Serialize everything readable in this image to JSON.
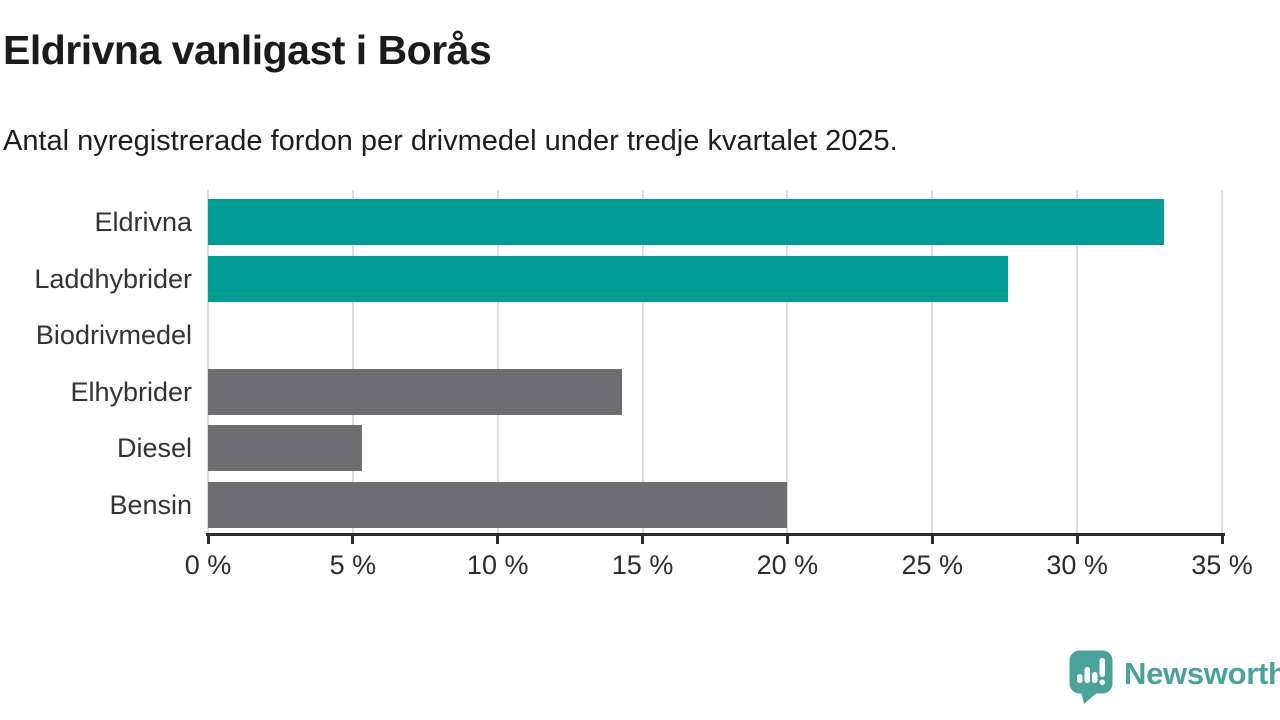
{
  "title": "Eldrivna vanligast i Borås",
  "subtitle": "Antal nyregistrerade fordon per drivmedel under tredje kvartalet 2025.",
  "chart_data": {
    "type": "bar",
    "orientation": "horizontal",
    "title": "Eldrivna vanligast i Borås",
    "subtitle": "Antal nyregistrerade fordon per drivmedel under tredje kvartalet 2025.",
    "categories": [
      "Eldrivna",
      "Laddhybrider",
      "Biodrivmedel",
      "Elhybrider",
      "Diesel",
      "Bensin"
    ],
    "values": [
      33.0,
      27.6,
      0,
      14.3,
      5.3,
      20.0
    ],
    "unit": "%",
    "xlabel": "",
    "ylabel": "",
    "xlim": [
      0,
      35
    ],
    "x_tick_values": [
      0,
      5,
      10,
      15,
      20,
      25,
      30,
      35
    ],
    "x_tick_labels": [
      "0 %",
      "5 %",
      "10 %",
      "15 %",
      "20 %",
      "25 %",
      "30 %",
      "35 %"
    ],
    "grid": true,
    "legend": false,
    "bar_colors": [
      "#009c94",
      "#009c94",
      "#6d6d72",
      "#6d6d72",
      "#6d6d72",
      "#6d6d72"
    ],
    "colors": {
      "highlight": "#009c94",
      "default": "#6d6d72",
      "grid": "#dcdcdc",
      "axis": "#2c2c2c",
      "category_label": "#333333",
      "tick_label": "#2c2c2c"
    }
  },
  "branding": {
    "logo_text": "Newsworthy",
    "logo_color": "#4aa39b"
  }
}
